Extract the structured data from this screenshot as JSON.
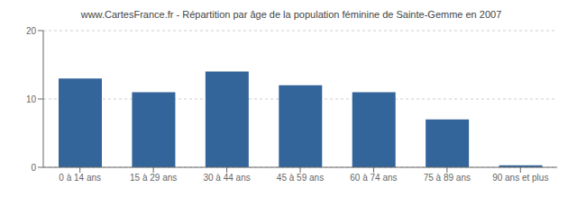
{
  "chart_data": {
    "type": "bar",
    "title": "www.CartesFrance.fr - Répartition par âge de la population féminine de Sainte-Gemme en 2007",
    "categories": [
      "0 à 14 ans",
      "15 à 29 ans",
      "30 à 44 ans",
      "45 à 59 ans",
      "60 à 74 ans",
      "75 à 89 ans",
      "90 ans et plus"
    ],
    "values": [
      13,
      11,
      14,
      12,
      11,
      7,
      0.3
    ],
    "color": "#34659a",
    "ylim": [
      0,
      20
    ],
    "yticks": [
      0,
      10,
      20
    ],
    "grid": true
  }
}
